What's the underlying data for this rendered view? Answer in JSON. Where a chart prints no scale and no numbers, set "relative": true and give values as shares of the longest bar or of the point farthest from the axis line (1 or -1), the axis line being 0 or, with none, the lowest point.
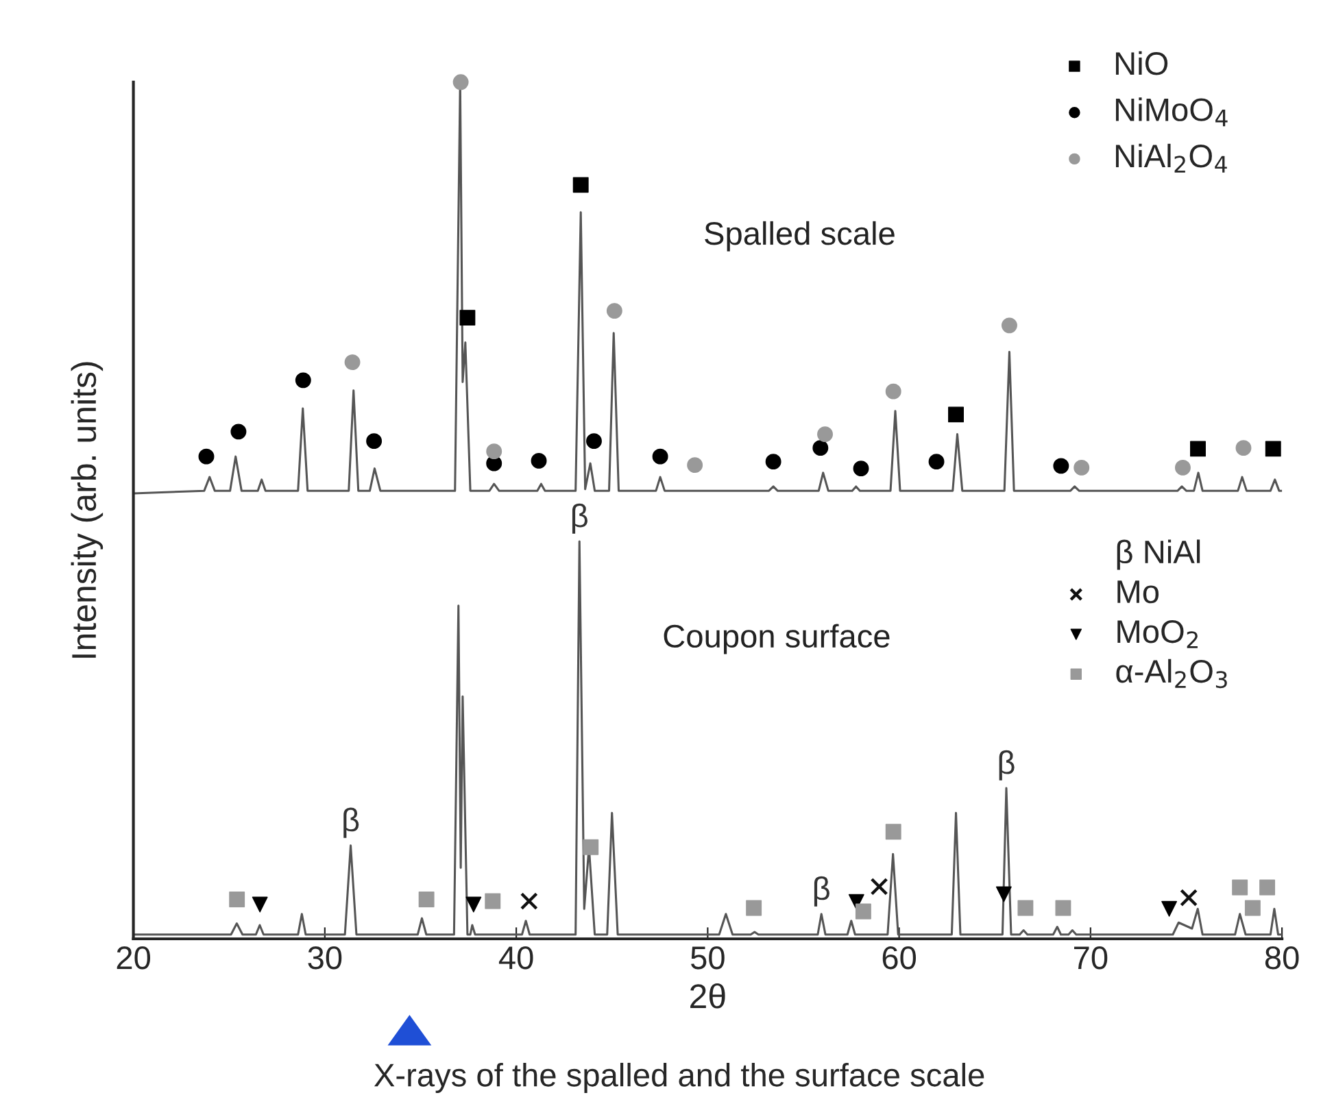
{
  "chart_data": {
    "type": "line",
    "relative": true,
    "xlabel": "2θ",
    "ylabel": "Intensity (arb. units)",
    "xlim": [
      20,
      80
    ],
    "xticks": [
      20,
      30,
      40,
      50,
      60,
      70,
      80
    ],
    "grid": false,
    "legend": "top right",
    "tick_labels": "x",
    "series": [
      {
        "color": "#555555",
        "line_style": "solid",
        "x": [
          20,
          23.7,
          23.98,
          24.25,
          25.05,
          25.34,
          25.65,
          26.5,
          26.7,
          26.9,
          28.6,
          28.85,
          29.1,
          31.25,
          31.5,
          31.75,
          32.35,
          32.6,
          32.9,
          36.8,
          37.07,
          37.2,
          37.34,
          37.6,
          38.6,
          38.84,
          39.1,
          41.1,
          41.3,
          41.5,
          43.1,
          43.37,
          43.6,
          43.87,
          44.1,
          44.85,
          45.09,
          45.35,
          47.3,
          47.52,
          47.75,
          53.2,
          53.43,
          53.65,
          55.8,
          56.03,
          56.3,
          57.55,
          57.75,
          57.95,
          59.55,
          59.8,
          60.05,
          62.8,
          63.04,
          63.3,
          65.5,
          65.76,
          66.0,
          68.95,
          69.17,
          69.4,
          74.55,
          74.77,
          75.0,
          75.4,
          75.63,
          75.85,
          77.7,
          77.92,
          78.15,
          79.4,
          79.63,
          79.85,
          80
        ],
        "values": [
          0.52,
          0.523,
          0.539,
          0.523,
          0.523,
          0.563,
          0.523,
          0.523,
          0.536,
          0.523,
          0.523,
          0.619,
          0.523,
          0.523,
          0.64,
          0.523,
          0.523,
          0.549,
          0.523,
          0.523,
          1.0,
          0.65,
          0.696,
          0.523,
          0.523,
          0.531,
          0.523,
          0.523,
          0.531,
          0.523,
          0.523,
          0.848,
          0.525,
          0.555,
          0.523,
          0.523,
          0.707,
          0.523,
          0.523,
          0.539,
          0.523,
          0.523,
          0.528,
          0.523,
          0.523,
          0.544,
          0.523,
          0.523,
          0.528,
          0.523,
          0.523,
          0.616,
          0.523,
          0.523,
          0.589,
          0.523,
          0.523,
          0.685,
          0.523,
          0.523,
          0.528,
          0.523,
          0.523,
          0.528,
          0.523,
          0.523,
          0.544,
          0.523,
          0.523,
          0.539,
          0.523,
          0.523,
          0.536,
          0.523,
          0.523
        ]
      },
      {
        "color": "#555555",
        "line_style": "solid",
        "x": [
          20,
          25.1,
          25.4,
          25.7,
          26.4,
          26.6,
          26.8,
          28.6,
          28.8,
          29.0,
          31.05,
          31.35,
          31.65,
          34.85,
          35.07,
          35.3,
          36.75,
          36.98,
          37.1,
          37.2,
          37.45,
          37.6,
          37.7,
          37.85,
          40.3,
          40.5,
          40.7,
          43.1,
          43.3,
          43.55,
          43.8,
          44.1,
          44.75,
          45.0,
          45.3,
          50.6,
          50.95,
          51.3,
          52.25,
          52.45,
          52.65,
          55.75,
          55.94,
          56.15,
          57.3,
          57.5,
          57.7,
          59.4,
          59.68,
          59.95,
          62.75,
          62.97,
          63.2,
          65.4,
          65.6,
          65.85,
          66.3,
          66.5,
          66.7,
          68.05,
          68.26,
          68.45,
          68.85,
          69.05,
          69.25,
          74.3,
          74.6,
          75.3,
          75.6,
          75.85,
          77.55,
          77.8,
          78.1,
          79.4,
          79.6,
          79.8,
          80
        ],
        "values": [
          0.005,
          0.005,
          0.018,
          0.005,
          0.005,
          0.016,
          0.005,
          0.005,
          0.029,
          0.005,
          0.005,
          0.109,
          0.005,
          0.005,
          0.024,
          0.005,
          0.005,
          0.389,
          0.083,
          0.283,
          0.005,
          0.005,
          0.016,
          0.005,
          0.005,
          0.021,
          0.005,
          0.005,
          0.464,
          0.035,
          0.107,
          0.005,
          0.005,
          0.147,
          0.005,
          0.005,
          0.029,
          0.005,
          0.005,
          0.008,
          0.005,
          0.005,
          0.029,
          0.005,
          0.005,
          0.021,
          0.005,
          0.005,
          0.099,
          0.005,
          0.005,
          0.147,
          0.005,
          0.005,
          0.176,
          0.005,
          0.005,
          0.01,
          0.005,
          0.005,
          0.014,
          0.005,
          0.005,
          0.01,
          0.005,
          0.005,
          0.019,
          0.012,
          0.035,
          0.005,
          0.005,
          0.029,
          0.005,
          0.005,
          0.035,
          0.005,
          0.005
        ]
      },
      {
        "type": "scatter",
        "name": "NiO",
        "color": "#000000",
        "marker": "square",
        "x": [
          37.45,
          43.37,
          62.97,
          75.61,
          79.54
        ],
        "values": [
          0.725,
          0.88,
          0.612,
          0.572,
          0.572
        ]
      },
      {
        "type": "scatter",
        "name": "NiMoO$_{4}$",
        "color": "#000000",
        "marker": "circle",
        "x": [
          23.81,
          25.49,
          28.87,
          32.57,
          38.84,
          41.18,
          44.06,
          47.52,
          53.43,
          55.89,
          58.01,
          61.95,
          68.46
        ],
        "values": [
          0.563,
          0.592,
          0.652,
          0.581,
          0.555,
          0.558,
          0.581,
          0.563,
          0.557,
          0.573,
          0.549,
          0.557,
          0.552
        ]
      },
      {
        "type": "scatter",
        "name": "NiAl$_{2}$O$_{4}$",
        "color": "#999999",
        "marker": "circle",
        "x": [
          31.44,
          37.1,
          38.84,
          45.13,
          49.33,
          56.13,
          59.7,
          65.76,
          69.53,
          74.82,
          77.99
        ],
        "values": [
          0.673,
          1.0,
          0.569,
          0.733,
          0.553,
          0.589,
          0.639,
          0.716,
          0.55,
          0.55,
          0.573
        ]
      },
      {
        "type": "scatter",
        "name": "Mo",
        "color": "#111111",
        "marker": "cross",
        "x": [
          40.67,
          58.96,
          75.13
        ],
        "values": [
          0.044,
          0.061,
          0.048
        ]
      },
      {
        "type": "scatter",
        "name": "MoO$_{2}$",
        "color": "#000000",
        "marker": "triangle",
        "x": [
          26.61,
          37.77,
          57.77,
          65.47,
          74.11
        ],
        "values": [
          0.04,
          0.04,
          0.043,
          0.052,
          0.035
        ]
      },
      {
        "type": "scatter",
        "name": "α-Al$_{2}$O$_{3}$",
        "color": "#999999",
        "marker": "square",
        "x": [
          25.41,
          35.31,
          38.77,
          43.89,
          52.41,
          58.13,
          59.7,
          66.6,
          68.57,
          77.8,
          79.23,
          78.47
        ],
        "values": [
          0.046,
          0.046,
          0.044,
          0.107,
          0.036,
          0.032,
          0.125,
          0.036,
          0.036,
          0.06,
          0.06,
          0.036
        ]
      }
    ],
    "annotations": [
      "Spalled scale",
      "Coupon surface",
      "β NiAl",
      {
        "text": "β",
        "x": 31.35,
        "y": 0.109
      },
      {
        "text": "β",
        "x": 43.3,
        "y": 0.464
      },
      {
        "text": "β",
        "x": 55.94,
        "y": 0.029
      },
      {
        "text": "β",
        "x": 65.6,
        "y": 0.176
      },
      "X-rays of the spalled and the surface scale"
    ]
  }
}
